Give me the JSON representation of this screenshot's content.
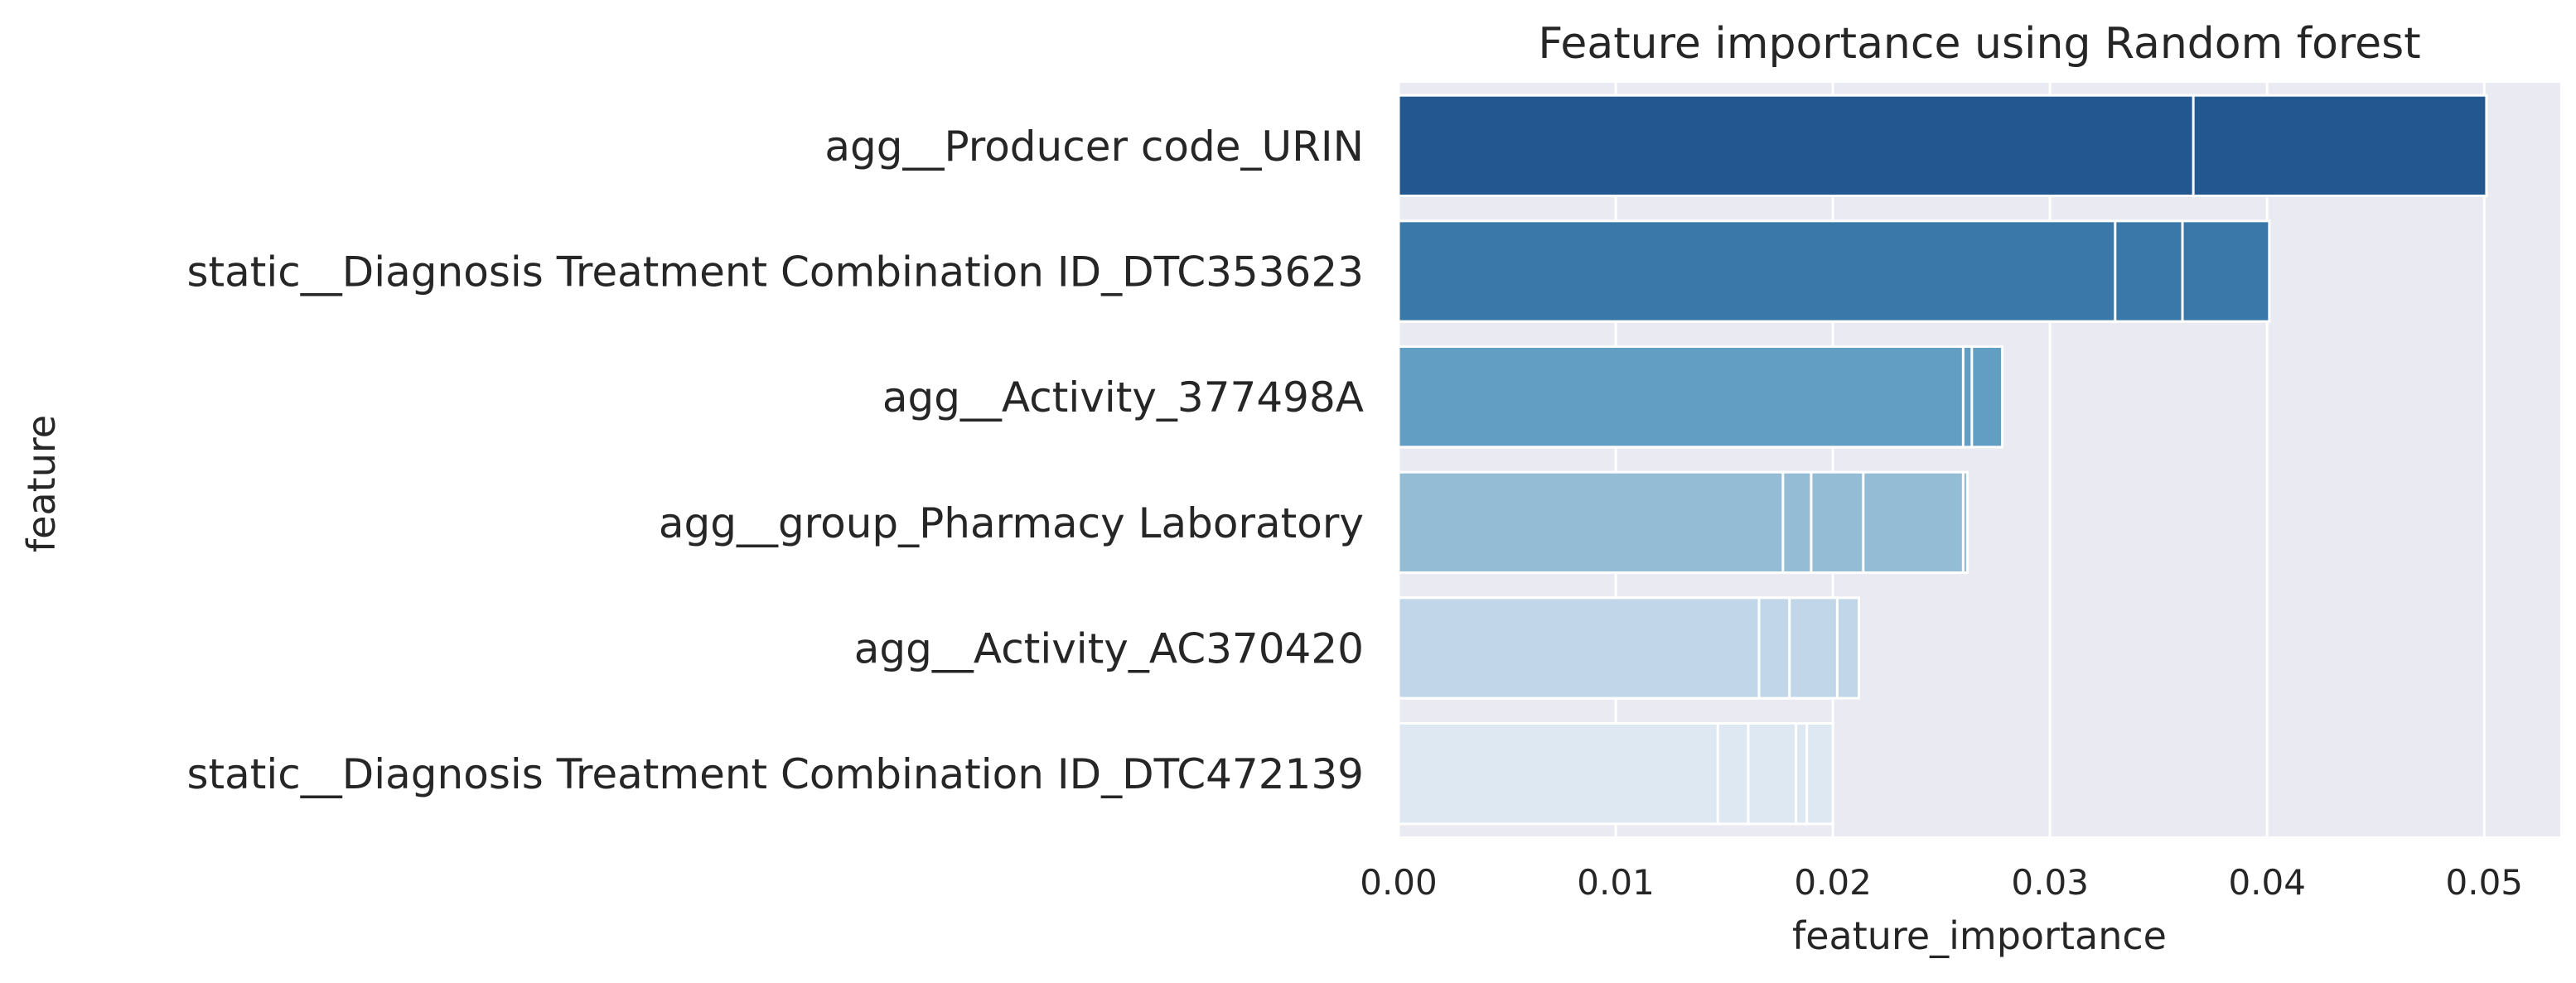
{
  "chart_data": {
    "type": "bar",
    "orientation": "horizontal",
    "title": "Feature importance using Random forest",
    "xlabel": "feature_importance",
    "ylabel": "feature",
    "xlim": [
      0,
      0.0535
    ],
    "xticks": [
      0.0,
      0.01,
      0.02,
      0.03,
      0.04,
      0.05
    ],
    "xtick_labels": [
      "0.00",
      "0.01",
      "0.02",
      "0.03",
      "0.04",
      "0.05"
    ],
    "grid": true,
    "categories": [
      "agg__Producer code_URIN",
      "static__Diagnosis Treatment Combination ID_DTC353623",
      "agg__Activity_377498A",
      "agg__group_Pharmacy Laboratory",
      "agg__Activity_AC370420",
      "static__Diagnosis Treatment Combination ID_DTC472139"
    ],
    "values": [
      0.0501,
      0.0401,
      0.0278,
      0.0262,
      0.0212,
      0.02
    ],
    "overlaid_bar_values": [
      [
        0.0366,
        0.0501
      ],
      [
        0.033,
        0.0361,
        0.0401
      ],
      [
        0.026,
        0.0264,
        0.0278
      ],
      [
        0.0177,
        0.019,
        0.0214,
        0.026,
        0.0262
      ],
      [
        0.0166,
        0.018,
        0.0202,
        0.0212
      ],
      [
        0.0147,
        0.0161,
        0.0183,
        0.0188,
        0.02
      ]
    ],
    "colors": [
      "#225790",
      "#3a78aa",
      "#629dc3",
      "#95bcd5",
      "#c1d6e8",
      "#dde8f3"
    ],
    "background": "#eaeaf2",
    "grid_color": "#ffffff"
  }
}
